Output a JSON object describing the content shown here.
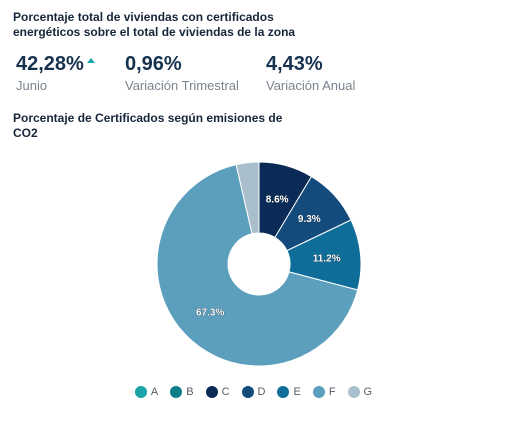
{
  "header": {
    "title": "Porcentaje total de viviendas con certificados energéticos sobre el total de viviendas de la zona"
  },
  "stats": [
    {
      "value": "42,28%",
      "label": "Junio",
      "trend_icon": "arrow-up-icon"
    },
    {
      "value": "0,96%",
      "label": "Variación Trimestral"
    },
    {
      "value": "4,43%",
      "label": "Variación Anual"
    }
  ],
  "chart_data": {
    "type": "pie",
    "title": "Porcentaje de Certificados según emisiones de CO2",
    "categories": [
      "A",
      "B",
      "C",
      "D",
      "E",
      "F",
      "G"
    ],
    "values": [
      0,
      0,
      8.6,
      9.3,
      11.2,
      67.3,
      3.6
    ],
    "data_labels": [
      "",
      "",
      "8.6%",
      "9.3%",
      "11.2%",
      "67.3%",
      ""
    ],
    "colors": [
      "#1ba5a8",
      "#0e7c86",
      "#0b2a55",
      "#134b7d",
      "#0e6e99",
      "#5b9fbd",
      "#a9bfcc"
    ],
    "donut": true,
    "legend_position": "bottom"
  }
}
